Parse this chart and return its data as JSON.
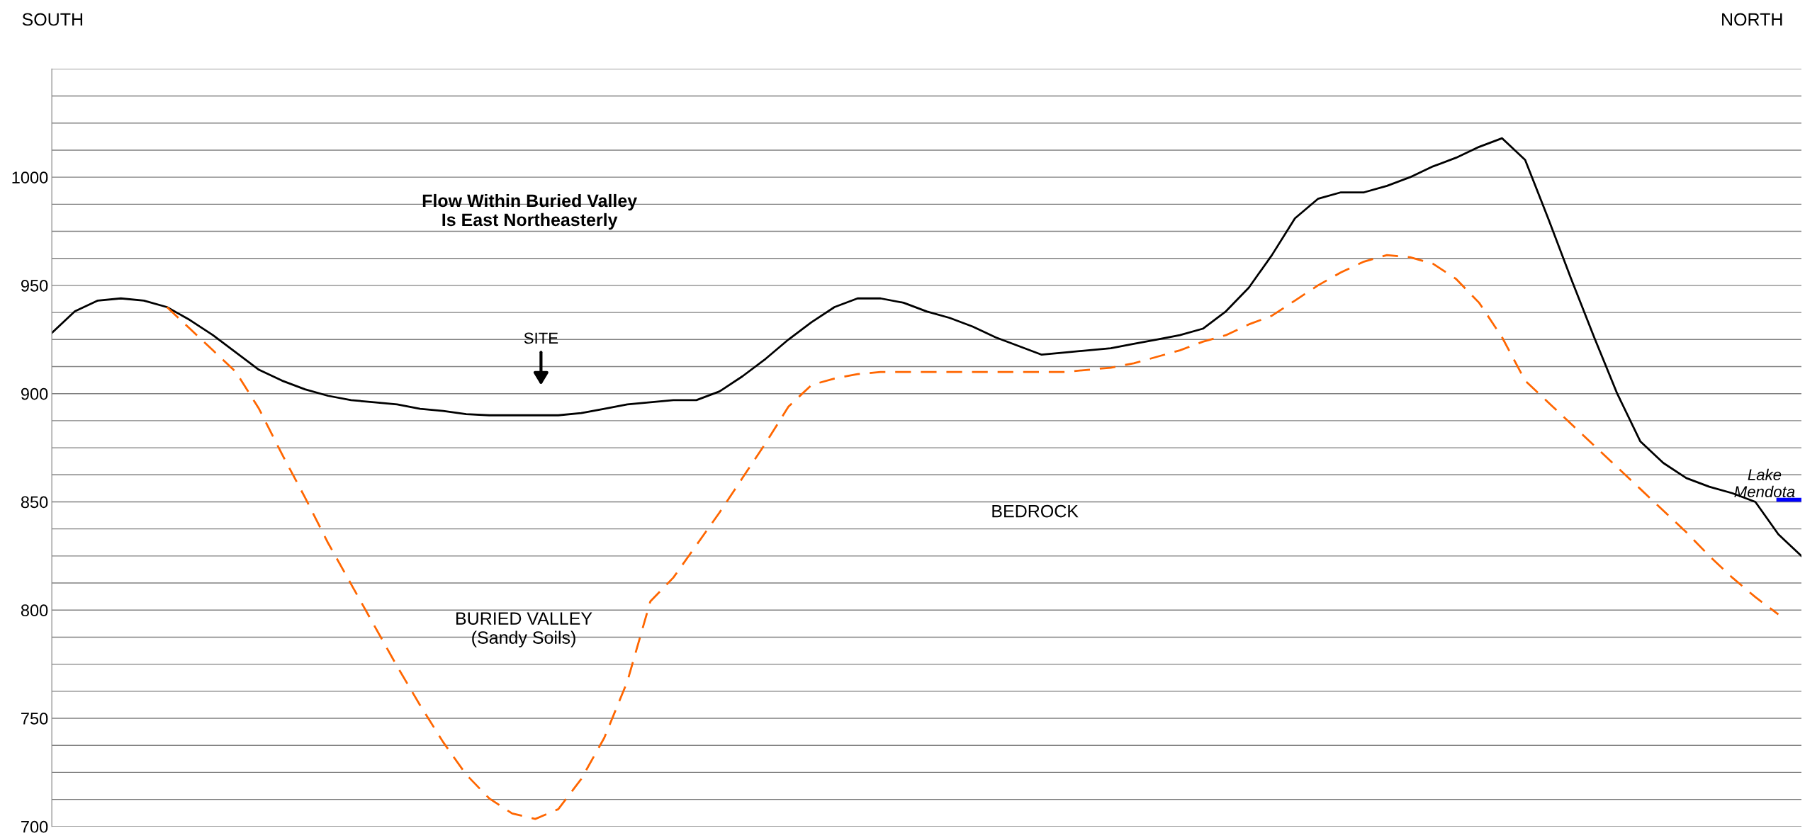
{
  "chart_data": {
    "type": "line",
    "categories": [
      null,
      null,
      null,
      null,
      null,
      null,
      null,
      null,
      null,
      null,
      null,
      null,
      null,
      null,
      null,
      null,
      null,
      null,
      null,
      null,
      null,
      null,
      null,
      null,
      null,
      null,
      null,
      null,
      null,
      null,
      null,
      null,
      null,
      null,
      null,
      null,
      null,
      null,
      null,
      null,
      null,
      null,
      null,
      null,
      null,
      null,
      null,
      null,
      null,
      null,
      null,
      null,
      null,
      null,
      null,
      null,
      null,
      null,
      null,
      null,
      null,
      null,
      null,
      null,
      null,
      null,
      null,
      null,
      null,
      null,
      null,
      null,
      null,
      null,
      null,
      null,
      null
    ],
    "series": [
      {
        "color": "#000000",
        "line_style": "solid",
        "values": [
          928,
          938,
          943,
          944,
          943,
          940,
          934,
          927,
          919,
          911,
          906,
          902,
          899,
          897,
          896,
          895,
          893,
          892,
          890.5,
          890,
          890,
          890,
          890,
          891,
          893,
          895,
          896,
          897,
          897,
          901,
          908,
          916,
          925,
          933,
          940,
          944,
          944,
          942,
          938,
          935,
          931,
          926,
          922,
          918,
          919,
          920,
          921,
          923,
          925,
          927,
          930,
          938,
          949,
          964,
          981,
          990,
          993,
          993,
          996,
          1000,
          1005,
          1009,
          1014,
          1018,
          1008,
          981,
          953,
          926,
          900,
          878,
          868,
          861,
          857,
          854,
          850,
          835,
          825
        ]
      },
      {
        "color": "#ff6600",
        "line_style": "dashed",
        "values": [
          null,
          null,
          null,
          null,
          null,
          940,
          930,
          920,
          910,
          893,
          872,
          852,
          831,
          812,
          793,
          774,
          756,
          739,
          724,
          713,
          706,
          703.5,
          708,
          722,
          741,
          767,
          804,
          815,
          830,
          845,
          861,
          877,
          894,
          904,
          907,
          909,
          910,
          910,
          910,
          910,
          910,
          910,
          910,
          910,
          910,
          911,
          912,
          914,
          917,
          920,
          924,
          927,
          932,
          936,
          943,
          950,
          956,
          961,
          964,
          963,
          960,
          953,
          942,
          926,
          906,
          896,
          886,
          876,
          866,
          856,
          846,
          836,
          825,
          815,
          806,
          798,
          null
        ]
      },
      {
        "color": "#0000ff",
        "line_style": "solid",
        "values": [
          null,
          null,
          null,
          null,
          null,
          null,
          null,
          null,
          null,
          null,
          null,
          null,
          null,
          null,
          null,
          null,
          null,
          null,
          null,
          null,
          null,
          null,
          null,
          null,
          null,
          null,
          null,
          null,
          null,
          null,
          null,
          null,
          null,
          null,
          null,
          null,
          null,
          null,
          null,
          null,
          null,
          null,
          null,
          null,
          null,
          null,
          null,
          null,
          null,
          null,
          null,
          null,
          null,
          null,
          null,
          null,
          null,
          null,
          null,
          null,
          null,
          null,
          null,
          null,
          null,
          null,
          null,
          null,
          null,
          null,
          null,
          null,
          null,
          null,
          null,
          851,
          851
        ]
      }
    ],
    "ylim": [
      700,
      1050
    ],
    "yticks": [
      700,
      {
        "value": 712.5,
        "label": null
      },
      {
        "value": 725,
        "label": null
      },
      {
        "value": 737.5,
        "label": null
      },
      750,
      {
        "value": 762.5,
        "label": null
      },
      {
        "value": 775,
        "label": null
      },
      {
        "value": 787.5,
        "label": null
      },
      800,
      {
        "value": 812.5,
        "label": null
      },
      {
        "value": 825,
        "label": null
      },
      {
        "value": 837.5,
        "label": null
      },
      850,
      {
        "value": 862.5,
        "label": null
      },
      {
        "value": 875,
        "label": null
      },
      {
        "value": 887.5,
        "label": null
      },
      900,
      {
        "value": 912.5,
        "label": null
      },
      {
        "value": 925,
        "label": null
      },
      {
        "value": 937.5,
        "label": null
      },
      950,
      {
        "value": 962.5,
        "label": null
      },
      {
        "value": 975,
        "label": null
      },
      {
        "value": 987.5,
        "label": null
      },
      1000,
      {
        "value": 1012.5,
        "label": null
      },
      {
        "value": 1025,
        "label": null
      },
      {
        "value": 1037.5,
        "label": null
      },
      {
        "value": 1050,
        "label": null
      }
    ],
    "grid": "y",
    "tick_labels": "y",
    "annotations": [
      "SOUTH",
      "NORTH",
      "Flow Within Buried Valley\nIs East Northeasterly",
      "SITE",
      "BURIED VALLEY\n(Sandy Soils)",
      "BEDROCK",
      "Lake\nMendota"
    ]
  }
}
